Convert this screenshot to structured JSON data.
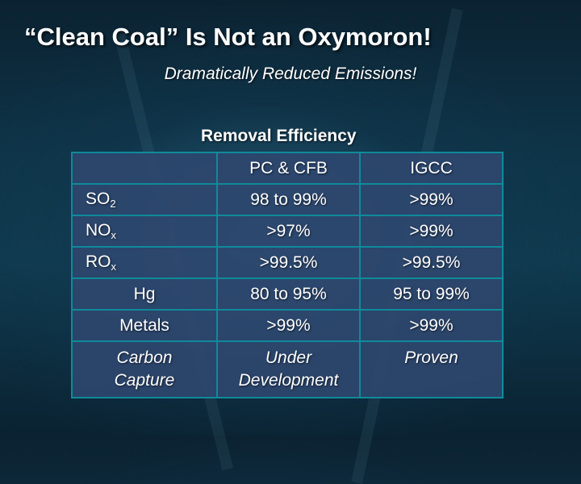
{
  "slide": {
    "title": "“Clean Coal” Is Not an Oxymoron!",
    "subtitle": "Dramatically Reduced  Emissions!",
    "table_caption": "Removal Efficiency"
  },
  "table": {
    "headers": [
      "",
      "PC & CFB",
      "IGCC"
    ],
    "rows": [
      {
        "label": "SO",
        "sub": "2",
        "pc_cfb": "98 to 99%",
        "igcc": ">99%"
      },
      {
        "label": "NO",
        "sub": "x",
        "pc_cfb": ">97%",
        "igcc": ">99%"
      },
      {
        "label": "RO",
        "sub": "x",
        "pc_cfb": ">99.5%",
        "igcc": ">99.5%"
      },
      {
        "label": "Hg",
        "sub": "",
        "pc_cfb": "80 to 95%",
        "igcc": "95 to 99%"
      },
      {
        "label": "Metals",
        "sub": "",
        "pc_cfb": ">99%",
        "igcc": ">99%"
      },
      {
        "label_line1": "Carbon",
        "label_line2": "Capture",
        "pc_cfb_line1": "Under",
        "pc_cfb_line2": "Development",
        "igcc": "Proven"
      }
    ]
  }
}
